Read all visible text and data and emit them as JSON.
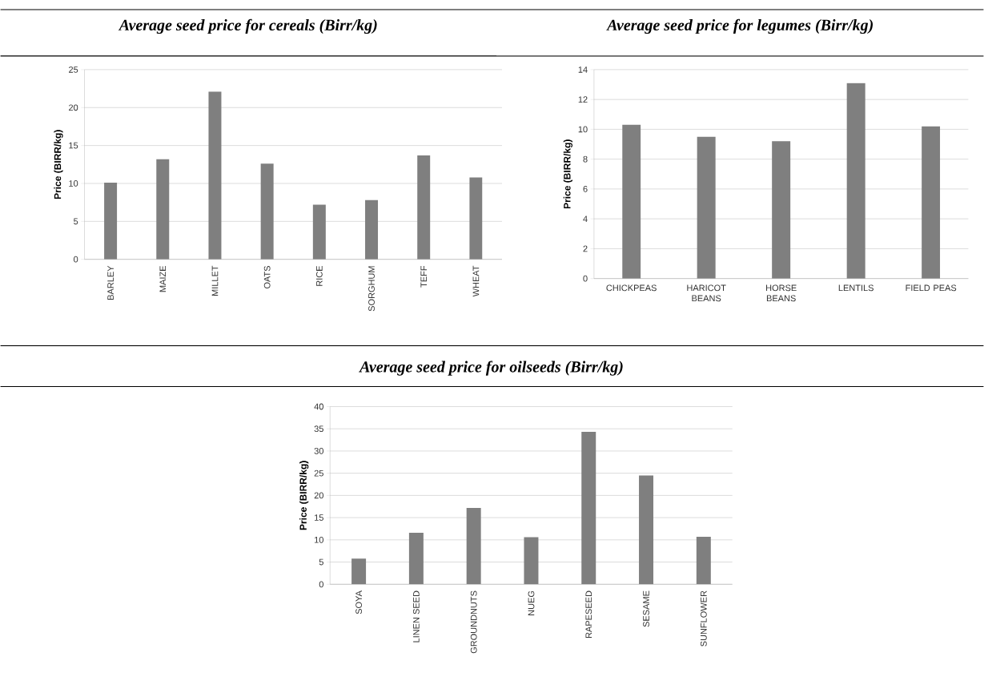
{
  "chart_data": [
    {
      "type": "bar",
      "title": "Average seed price for cereals (Birr/kg)",
      "ylabel": "Price (BIRR/kg)",
      "categories": [
        "BARLEY",
        "MAIZE",
        "MILLET",
        "OATS",
        "RICE",
        "SORGHUM",
        "TEFF",
        "WHEAT"
      ],
      "values": [
        10.1,
        13.2,
        22.1,
        12.6,
        7.2,
        7.8,
        13.7,
        10.8
      ],
      "color": "#7f7f7f",
      "ylim": [
        0,
        25
      ],
      "yticks": [
        0,
        5,
        10,
        15,
        20,
        25
      ],
      "grid": "y"
    },
    {
      "type": "bar",
      "title": "Average seed price for legumes (Birr/kg)",
      "ylabel": "Price (BIRR/kg)",
      "categories": [
        "CHICKPEAS",
        "HARICOT BEANS",
        "HORSE BEANS",
        "LENTILS",
        "FIELD PEAS"
      ],
      "values": [
        10.3,
        9.5,
        9.2,
        13.1,
        10.2
      ],
      "color": "#7f7f7f",
      "ylim": [
        0,
        14
      ],
      "yticks": [
        0,
        2,
        4,
        6,
        8,
        10,
        12,
        14
      ],
      "grid": "y"
    },
    {
      "type": "bar",
      "title": "Average seed price for oilseeds (Birr/kg)",
      "ylabel": "Price (BIRR/kg)",
      "categories": [
        "SOYA",
        "LINEN SEED",
        "GROUNDNUTS",
        "NUEG",
        "RAPESEED",
        "SESAME",
        "SUNFLOWER"
      ],
      "values": [
        5.8,
        11.6,
        17.2,
        10.6,
        34.3,
        24.5,
        10.7
      ],
      "color": "#7f7f7f",
      "ylim": [
        0,
        40
      ],
      "yticks": [
        0,
        5,
        10,
        15,
        20,
        25,
        30,
        35,
        40
      ],
      "grid": "y"
    }
  ]
}
